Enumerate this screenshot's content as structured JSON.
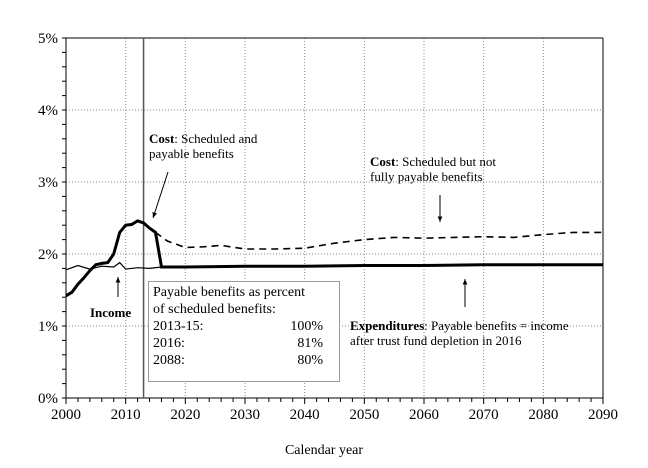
{
  "chart_data": {
    "type": "line",
    "xlabel": "Calendar year",
    "ylabel": "",
    "xlim": [
      2000,
      2090
    ],
    "ylim": [
      0,
      5
    ],
    "x_ticks": [
      "2000",
      "2010",
      "2020",
      "2030",
      "2040",
      "2050",
      "2060",
      "2070",
      "2080",
      "2090"
    ],
    "y_ticks": [
      "0%",
      "1%",
      "2%",
      "3%",
      "4%",
      "5%"
    ],
    "grid": true,
    "vertical_marker_year": 2013,
    "series": [
      {
        "key": "cost_payable",
        "style": "thick-solid",
        "color": "#000000",
        "x": [
          2000,
          2001,
          2002,
          2003,
          2004,
          2005,
          2006,
          2007,
          2008,
          2009,
          2010,
          2011,
          2012,
          2013,
          2014,
          2015,
          2016,
          2020,
          2030,
          2040,
          2050,
          2060,
          2070,
          2080,
          2090
        ],
        "y": [
          1.42,
          1.47,
          1.58,
          1.67,
          1.77,
          1.85,
          1.87,
          1.88,
          2.0,
          2.3,
          2.4,
          2.41,
          2.46,
          2.43,
          2.36,
          2.3,
          1.82,
          1.82,
          1.83,
          1.83,
          1.84,
          1.84,
          1.85,
          1.85,
          1.85
        ]
      },
      {
        "key": "cost_scheduled",
        "style": "dashed",
        "color": "#000000",
        "x": [
          2015,
          2017,
          2020,
          2023,
          2026,
          2030,
          2035,
          2040,
          2045,
          2050,
          2055,
          2060,
          2065,
          2070,
          2075,
          2080,
          2085,
          2090
        ],
        "y": [
          2.3,
          2.18,
          2.09,
          2.1,
          2.12,
          2.07,
          2.07,
          2.08,
          2.15,
          2.2,
          2.23,
          2.22,
          2.23,
          2.24,
          2.23,
          2.27,
          2.3,
          2.3
        ]
      },
      {
        "key": "income",
        "style": "thin-solid",
        "color": "#000000",
        "x": [
          2000,
          2002,
          2004,
          2006,
          2008,
          2009,
          2010,
          2012,
          2014,
          2016
        ],
        "y": [
          1.78,
          1.84,
          1.79,
          1.83,
          1.82,
          1.88,
          1.79,
          1.81,
          1.8,
          1.82
        ]
      }
    ],
    "annotations": {
      "cost_payable": {
        "bold": "Cost",
        "rest": ": Scheduled and",
        "line2": "payable benefits"
      },
      "cost_scheduled": {
        "bold": "Cost",
        "rest": ": Scheduled but not",
        "line2": "fully payable benefits"
      },
      "income": {
        "bold": "Income"
      },
      "expenditures": {
        "bold": "Expenditures",
        "rest": ": Payable benefits = income",
        "line2": "after trust fund depletion in 2016"
      }
    },
    "table": {
      "title1": "Payable benefits as percent",
      "title2": "of scheduled benefits:",
      "rows": [
        {
          "label": "2013-15:",
          "value": "100%"
        },
        {
          "label": "2016:",
          "value": "81%"
        },
        {
          "label": "2088:",
          "value": "80%"
        }
      ]
    }
  }
}
